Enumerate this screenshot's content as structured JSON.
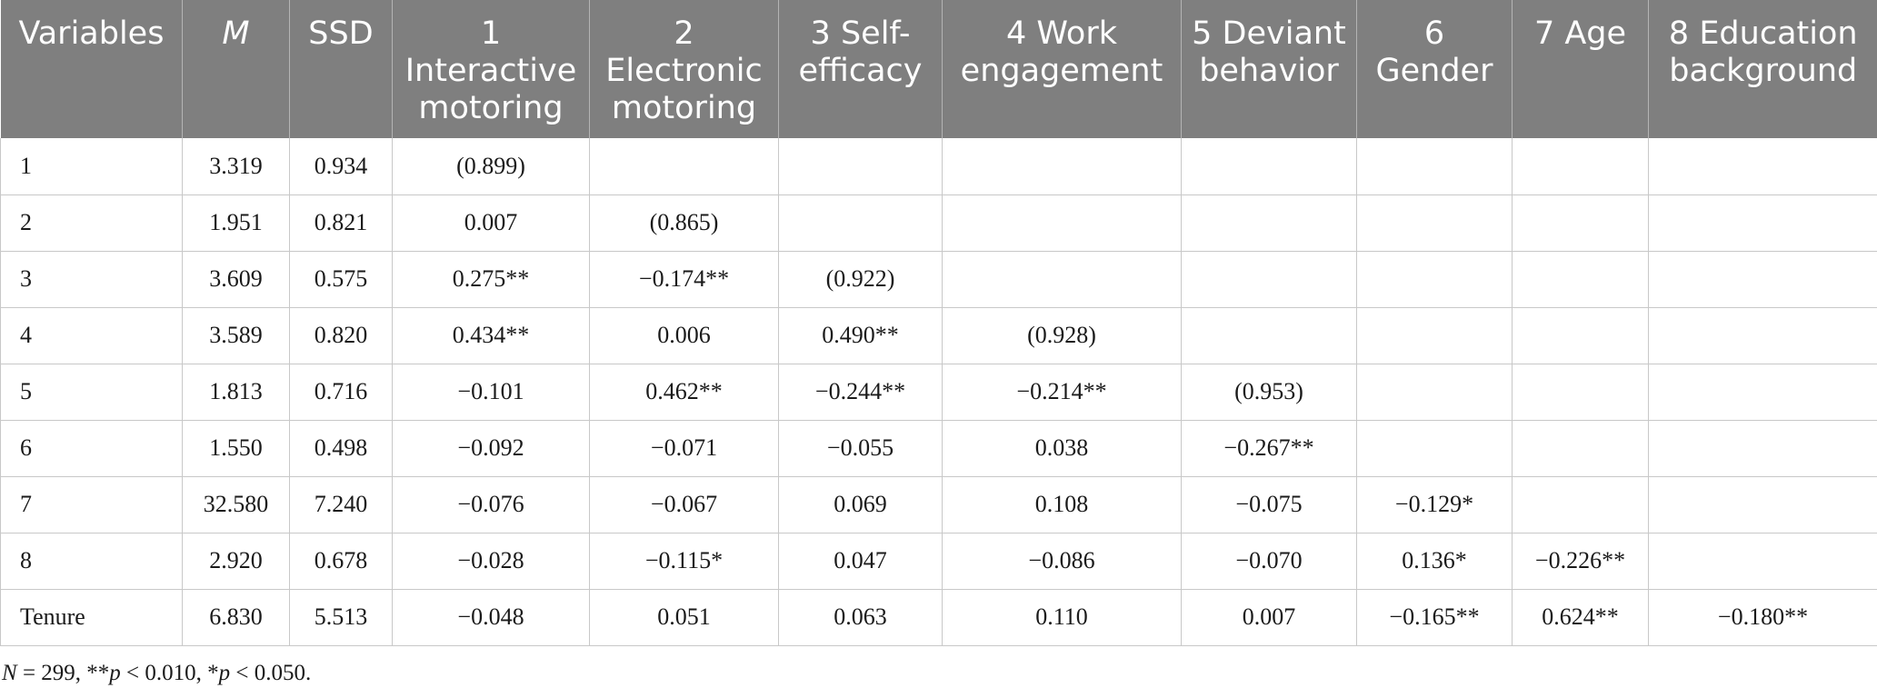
{
  "table": {
    "headers": [
      {
        "text": "Variables",
        "italic": false
      },
      {
        "text": "M",
        "italic": true
      },
      {
        "text": "SSD",
        "italic": false
      },
      {
        "text": "1 Interactive motoring",
        "italic": false
      },
      {
        "text": "2 Electronic motoring",
        "italic": false
      },
      {
        "text": "3 Self-efficacy",
        "italic": false
      },
      {
        "text": "4 Work engagement",
        "italic": false
      },
      {
        "text": "5 Deviant behavior",
        "italic": false
      },
      {
        "text": "6 Gender",
        "italic": false
      },
      {
        "text": "7 Age",
        "italic": false
      },
      {
        "text": "8 Education background",
        "italic": false
      }
    ],
    "rows": [
      [
        "1",
        "3.319",
        "0.934",
        "(0.899)",
        "",
        "",
        "",
        "",
        "",
        "",
        ""
      ],
      [
        "2",
        "1.951",
        "0.821",
        "0.007",
        "(0.865)",
        "",
        "",
        "",
        "",
        "",
        ""
      ],
      [
        "3",
        "3.609",
        "0.575",
        "0.275**",
        "−0.174**",
        "(0.922)",
        "",
        "",
        "",
        "",
        ""
      ],
      [
        "4",
        "3.589",
        "0.820",
        "0.434**",
        "0.006",
        "0.490**",
        "(0.928)",
        "",
        "",
        "",
        ""
      ],
      [
        "5",
        "1.813",
        "0.716",
        "−0.101",
        "0.462**",
        "−0.244**",
        "−0.214**",
        "(0.953)",
        "",
        "",
        ""
      ],
      [
        "6",
        "1.550",
        "0.498",
        "−0.092",
        "−0.071",
        "−0.055",
        "0.038",
        "−0.267**",
        "",
        "",
        ""
      ],
      [
        "7",
        "32.580",
        "7.240",
        "−0.076",
        "−0.067",
        "0.069",
        "0.108",
        "−0.075",
        "−0.129*",
        "",
        ""
      ],
      [
        "8",
        "2.920",
        "0.678",
        "−0.028",
        "−0.115*",
        "0.047",
        "−0.086",
        "−0.070",
        "0.136*",
        "−0.226**",
        ""
      ],
      [
        "Tenure",
        "6.830",
        "5.513",
        "−0.048",
        "0.051",
        "0.063",
        "0.110",
        "0.007",
        "−0.165**",
        "0.624**",
        "−0.180**"
      ]
    ]
  },
  "footnote": {
    "n_symbol": "N",
    "n_text": " = 299, **",
    "p1_symbol": "p",
    "p1_text": " < 0.010, *",
    "p2_symbol": "p",
    "p2_text": " < 0.050."
  }
}
